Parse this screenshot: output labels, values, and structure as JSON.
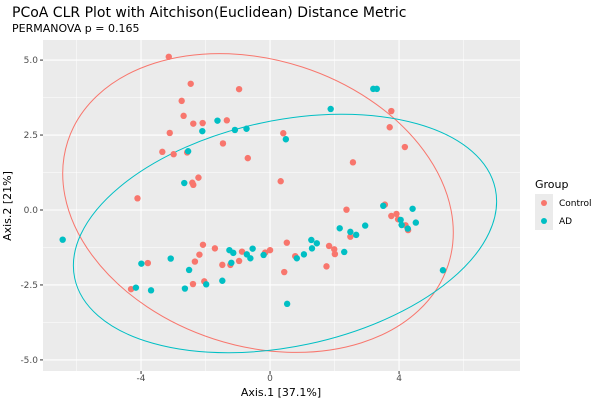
{
  "chart_data": {
    "type": "scatter",
    "title": "PCoA CLR Plot with Aitchison(Euclidean) Distance Metric",
    "subtitle": "PERMANOVA p = 0.165",
    "xlabel": "Axis.1   [37.1%]",
    "ylabel": "Axis.2   [21%]",
    "xlim": [
      -7.04,
      7.75
    ],
    "ylim": [
      -5.37,
      5.67
    ],
    "xticks": [
      -4,
      0,
      4
    ],
    "xtick_labels": [
      "-4",
      "0",
      "4"
    ],
    "yticks": [
      -5,
      -2.5,
      0,
      2.5,
      5
    ],
    "ytick_labels": [
      "-5.0",
      "-2.5",
      "0.0",
      "2.5",
      "5.0"
    ],
    "grid": true,
    "ellipses": "95% normal confidence ellipse per group",
    "legend": {
      "title": "Group",
      "placement": "right",
      "entries": [
        "Control",
        "AD"
      ]
    },
    "series": [
      {
        "name": "Control",
        "color": "#F8766D",
        "points": [
          [
            -3.14,
            5.11
          ],
          [
            -2.46,
            4.21
          ],
          [
            -0.96,
            4.03
          ],
          [
            -2.74,
            3.64
          ],
          [
            -2.68,
            3.14
          ],
          [
            -2.38,
            2.88
          ],
          [
            -2.09,
            2.9
          ],
          [
            -1.34,
            2.99
          ],
          [
            -3.11,
            2.57
          ],
          [
            -3.34,
            1.94
          ],
          [
            -2.99,
            1.86
          ],
          [
            -2.57,
            1.92
          ],
          [
            -1.46,
            2.22
          ],
          [
            -0.69,
            1.73
          ],
          [
            -2.22,
            1.08
          ],
          [
            -2.41,
            0.91
          ],
          [
            -2.38,
            0.84
          ],
          [
            -4.11,
            0.39
          ],
          [
            0.33,
            0.96
          ],
          [
            3.76,
            3.3
          ],
          [
            3.71,
            2.76
          ],
          [
            0.41,
            2.56
          ],
          [
            4.18,
            2.1
          ],
          [
            2.57,
            1.59
          ],
          [
            3.56,
            0.18
          ],
          [
            2.37,
            0.01
          ],
          [
            -3.79,
            -1.77
          ],
          [
            -4.31,
            -2.64
          ],
          [
            -2.08,
            -1.16
          ],
          [
            -2.19,
            -1.49
          ],
          [
            -2.33,
            -1.72
          ],
          [
            -1.71,
            -1.28
          ],
          [
            -1.48,
            -1.83
          ],
          [
            -1.23,
            -1.83
          ],
          [
            -0.96,
            -1.7
          ],
          [
            -0.87,
            -1.39
          ],
          [
            -0.15,
            -1.42
          ],
          [
            0.0,
            -1.34
          ],
          [
            -2.39,
            -2.47
          ],
          [
            -2.04,
            -2.38
          ],
          [
            0.52,
            -1.09
          ],
          [
            0.78,
            -1.54
          ],
          [
            0.44,
            -2.07
          ],
          [
            3.76,
            -0.2
          ],
          [
            3.92,
            -0.13
          ],
          [
            3.97,
            -0.31
          ],
          [
            4.2,
            -0.51
          ],
          [
            4.28,
            -0.67
          ],
          [
            1.83,
            -1.2
          ],
          [
            1.99,
            -1.31
          ],
          [
            2.01,
            -1.47
          ],
          [
            2.49,
            -0.89
          ],
          [
            1.75,
            -1.88
          ]
        ]
      },
      {
        "name": "AD",
        "color": "#00BFC4",
        "points": [
          [
            -1.63,
            2.98
          ],
          [
            -2.1,
            2.63
          ],
          [
            -1.09,
            2.67
          ],
          [
            -0.73,
            2.71
          ],
          [
            -2.54,
            1.96
          ],
          [
            -2.66,
            0.9
          ],
          [
            3.2,
            4.04
          ],
          [
            3.31,
            4.04
          ],
          [
            1.88,
            3.37
          ],
          [
            0.49,
            2.36
          ],
          [
            3.51,
            0.14
          ],
          [
            4.42,
            0.04
          ],
          [
            -6.43,
            -0.99
          ],
          [
            -3.99,
            -1.79
          ],
          [
            -3.08,
            -1.62
          ],
          [
            -2.51,
            -2.0
          ],
          [
            -4.16,
            -2.59
          ],
          [
            -3.69,
            -2.68
          ],
          [
            -2.64,
            -2.62
          ],
          [
            -1.98,
            -2.48
          ],
          [
            -1.48,
            -2.36
          ],
          [
            -1.26,
            -1.34
          ],
          [
            -1.14,
            -1.43
          ],
          [
            -1.2,
            -1.76
          ],
          [
            -0.72,
            -1.48
          ],
          [
            -0.54,
            -1.29
          ],
          [
            -0.61,
            -1.61
          ],
          [
            -0.2,
            -1.5
          ],
          [
            0.83,
            -1.61
          ],
          [
            1.05,
            -1.48
          ],
          [
            1.28,
            -1.0
          ],
          [
            1.45,
            -1.11
          ],
          [
            1.3,
            -1.28
          ],
          [
            2.16,
            -0.61
          ],
          [
            2.49,
            -0.73
          ],
          [
            2.67,
            -0.83
          ],
          [
            2.95,
            -0.52
          ],
          [
            2.3,
            -1.4
          ],
          [
            4.05,
            -0.33
          ],
          [
            4.08,
            -0.5
          ],
          [
            4.27,
            -0.62
          ],
          [
            4.52,
            -0.42
          ],
          [
            5.36,
            -2.01
          ],
          [
            0.53,
            -3.13
          ]
        ]
      }
    ]
  }
}
